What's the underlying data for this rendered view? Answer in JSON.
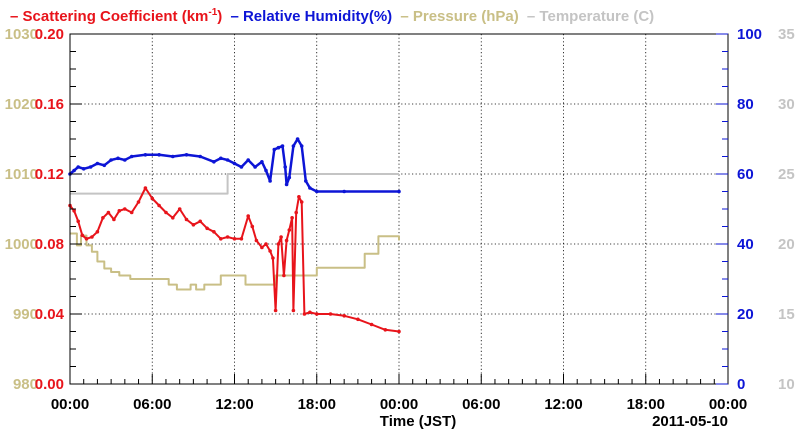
{
  "colors": {
    "scattering": "#e8141b",
    "humidity": "#0d15d6",
    "pressure": "#c9bf86",
    "temperature": "#c4c4c4",
    "axis": "#000000"
  },
  "legend": {
    "scattering_prefix": "– Scattering Coefficient (km",
    "scattering_sup": "-1",
    "scattering_suffix": ")",
    "humidity": "– Relative Humidity(%)",
    "pressure": "– Pressure (hPa)",
    "temperature": "– Temperature (C)"
  },
  "chart_data": {
    "type": "line",
    "xlabel": "Time (JST)",
    "date_label": "2011-05-10",
    "x_tick_labels": [
      "00:00",
      "06:00",
      "12:00",
      "18:00",
      "00:00",
      "06:00",
      "12:00",
      "18:00",
      "00:00"
    ],
    "x_range_hours": [
      0,
      48
    ],
    "grid": true,
    "axes": {
      "pressure": {
        "side": "left-outer",
        "range": [
          980,
          1030
        ],
        "ticks": [
          "980",
          "990",
          "1000",
          "1010",
          "1020",
          "1030"
        ]
      },
      "scattering": {
        "side": "left",
        "range": [
          0.0,
          0.2
        ],
        "ticks": [
          "0.00",
          "0.04",
          "0.08",
          "0.12",
          "0.16",
          "0.20"
        ]
      },
      "humidity": {
        "side": "right",
        "range": [
          0,
          100
        ],
        "ticks": [
          "0",
          "20",
          "40",
          "60",
          "80",
          "100"
        ]
      },
      "temperature": {
        "side": "right-outer",
        "range": [
          10,
          35
        ],
        "ticks": [
          "10",
          "15",
          "20",
          "25",
          "30",
          "35"
        ]
      }
    },
    "series": [
      {
        "key": "temperature",
        "name": "Temperature (C)",
        "axis": "temperature",
        "style": "step",
        "x": [
          0,
          11.5,
          11.5,
          24
        ],
        "y": [
          23.6,
          23.6,
          25,
          25
        ]
      },
      {
        "key": "pressure",
        "name": "Pressure (hPa)",
        "axis": "pressure",
        "style": "step",
        "x": [
          0,
          0.5,
          0.8,
          1.2,
          1.6,
          2.0,
          2.5,
          3.0,
          3.6,
          4.4,
          7.2,
          7.8,
          8.8,
          9.2,
          9.8,
          11.0,
          12.8,
          15.0,
          18.0,
          21.5,
          22.5,
          24
        ],
        "y": [
          1001.5,
          999.8,
          1001.2,
          999.8,
          998.9,
          997.5,
          996.5,
          996.0,
          995.5,
          995.0,
          994.2,
          993.5,
          994.2,
          993.5,
          994.2,
          995.5,
          994.2,
          995.5,
          996.6,
          998.6,
          1001.1,
          1000.5
        ]
      },
      {
        "key": "humidity",
        "name": "Relative Humidity(%)",
        "axis": "humidity",
        "style": "line",
        "x": [
          0,
          0.3,
          0.6,
          1.0,
          1.5,
          2.0,
          2.5,
          3.0,
          3.5,
          4.0,
          4.5,
          5.5,
          6.5,
          7.5,
          8.5,
          9.5,
          10.5,
          11.0,
          11.5,
          12.0,
          12.5,
          13.0,
          13.5,
          14.0,
          14.3,
          14.6,
          14.9,
          15.2,
          15.5,
          15.7,
          15.8,
          16.0,
          16.3,
          16.6,
          16.9,
          17.2,
          17.5,
          18.0,
          20.0,
          24.0
        ],
        "y": [
          60,
          61,
          62,
          61.5,
          62,
          63,
          62.5,
          64,
          64.5,
          64,
          65,
          65.5,
          65.5,
          65,
          65.5,
          65,
          63.5,
          64.5,
          64,
          63,
          62,
          64,
          62,
          63.5,
          61,
          58,
          67,
          67.5,
          68,
          62,
          57,
          59,
          68,
          70,
          68,
          58,
          56,
          55,
          55,
          55
        ]
      },
      {
        "key": "scattering",
        "name": "Scattering Coefficient (km-1)",
        "axis": "scattering",
        "style": "line-markers",
        "x": [
          0,
          0.3,
          0.6,
          0.9,
          1.2,
          1.6,
          2.0,
          2.4,
          2.8,
          3.2,
          3.6,
          4.0,
          4.5,
          5.0,
          5.5,
          6.0,
          6.5,
          7.0,
          7.5,
          8.0,
          8.5,
          9.0,
          9.5,
          10.0,
          10.5,
          11.0,
          11.5,
          12.0,
          12.5,
          13.0,
          13.3,
          13.6,
          14.0,
          14.3,
          14.6,
          14.8,
          15.0,
          15.2,
          15.4,
          15.6,
          15.8,
          16.0,
          16.2,
          16.3,
          16.5,
          16.7,
          16.9,
          17.1,
          17.5,
          18.0,
          19.0,
          20.0,
          21.0,
          22.0,
          23.0,
          24.0
        ],
        "y": [
          0.102,
          0.099,
          0.093,
          0.085,
          0.083,
          0.084,
          0.087,
          0.095,
          0.098,
          0.094,
          0.099,
          0.1,
          0.098,
          0.104,
          0.112,
          0.106,
          0.102,
          0.098,
          0.095,
          0.1,
          0.094,
          0.091,
          0.093,
          0.089,
          0.087,
          0.083,
          0.084,
          0.083,
          0.083,
          0.096,
          0.09,
          0.082,
          0.078,
          0.08,
          0.076,
          0.072,
          0.042,
          0.08,
          0.084,
          0.062,
          0.082,
          0.088,
          0.095,
          0.042,
          0.098,
          0.107,
          0.104,
          0.04,
          0.041,
          0.04,
          0.04,
          0.039,
          0.037,
          0.034,
          0.031,
          0.03
        ]
      }
    ]
  }
}
